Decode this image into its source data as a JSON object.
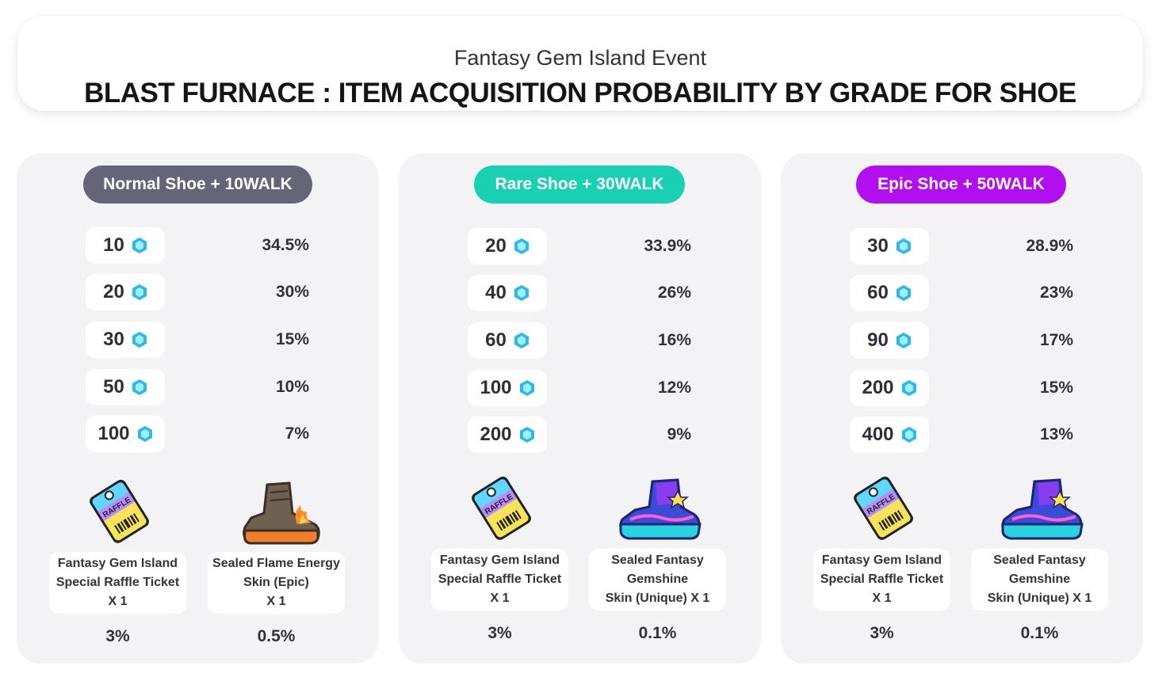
{
  "header": {
    "subtitle": "Fantasy Gem Island Event",
    "title": "BLAST FURNACE : ITEM ACQUISITION PROBABILITY BY GRADE FOR SHOE"
  },
  "colors": {
    "normal": "#666477",
    "rare": "#19d1b2",
    "epic": "#b20ff0",
    "panel_bg": "#f3f3f6"
  },
  "panels": [
    {
      "label": "Normal Shoe + 10WALK",
      "rows": [
        {
          "amount": "10",
          "pct": "34.5%"
        },
        {
          "amount": "20",
          "pct": "30%"
        },
        {
          "amount": "30",
          "pct": "15%"
        },
        {
          "amount": "50",
          "pct": "10%"
        },
        {
          "amount": "100",
          "pct": "7%"
        }
      ],
      "rewards": [
        {
          "icon": "raffle-ticket-icon",
          "lines": [
            "Fantasy Gem Island",
            "Special Raffle Ticket",
            "X 1"
          ],
          "pct": "3%"
        },
        {
          "icon": "flame-boot-icon",
          "lines": [
            "Sealed Flame Energy",
            "Skin (Epic)",
            "X 1"
          ],
          "pct": "0.5%"
        }
      ]
    },
    {
      "label": "Rare Shoe + 30WALK",
      "rows": [
        {
          "amount": "20",
          "pct": "33.9%"
        },
        {
          "amount": "40",
          "pct": "26%"
        },
        {
          "amount": "60",
          "pct": "16%"
        },
        {
          "amount": "100",
          "pct": "12%"
        },
        {
          "amount": "200",
          "pct": "9%"
        }
      ],
      "rewards": [
        {
          "icon": "raffle-ticket-icon",
          "lines": [
            "Fantasy Gem Island",
            "Special Raffle Ticket",
            "X 1"
          ],
          "pct": "3%"
        },
        {
          "icon": "gemshine-sneaker-icon",
          "lines": [
            "Sealed Fantasy",
            "Gemshine",
            "Skin (Unique) X 1"
          ],
          "pct": "0.1%"
        }
      ]
    },
    {
      "label": "Epic Shoe + 50WALK",
      "rows": [
        {
          "amount": "30",
          "pct": "28.9%"
        },
        {
          "amount": "60",
          "pct": "23%"
        },
        {
          "amount": "90",
          "pct": "17%"
        },
        {
          "amount": "200",
          "pct": "15%"
        },
        {
          "amount": "400",
          "pct": "13%"
        }
      ],
      "rewards": [
        {
          "icon": "raffle-ticket-icon",
          "lines": [
            "Fantasy Gem Island",
            "Special Raffle Ticket",
            "X 1"
          ],
          "pct": "3%"
        },
        {
          "icon": "gemshine-sneaker-icon",
          "lines": [
            "Sealed Fantasy",
            "Gemshine",
            "Skin (Unique) X 1"
          ],
          "pct": "0.1%"
        }
      ]
    }
  ]
}
